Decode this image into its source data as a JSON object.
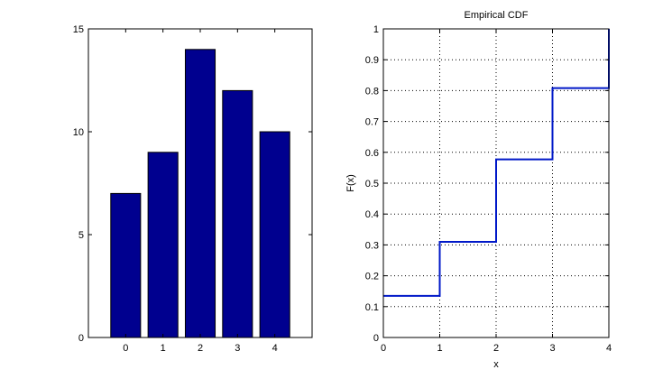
{
  "chart_data": [
    {
      "type": "bar",
      "title": "",
      "xlabel": "",
      "ylabel": "",
      "categories": [
        "0",
        "1",
        "2",
        "3",
        "4"
      ],
      "values": [
        7,
        9,
        14,
        12,
        10
      ],
      "xlim": [
        -1,
        5
      ],
      "ylim": [
        0,
        15
      ],
      "yticks": [
        0,
        5,
        10,
        15
      ],
      "grid": false,
      "bar_color": "#00008f"
    },
    {
      "type": "line",
      "step": true,
      "title": "Empirical CDF",
      "xlabel": "x",
      "ylabel": "F(x)",
      "series": [
        {
          "x": [
            0,
            1,
            1,
            2,
            2,
            3,
            3,
            4,
            4
          ],
          "y": [
            0.135,
            0.135,
            0.31,
            0.31,
            0.577,
            0.577,
            0.808,
            0.808,
            1.0
          ]
        }
      ],
      "xlim": [
        0,
        4
      ],
      "ylim": [
        0,
        1
      ],
      "xticks": [
        0,
        1,
        2,
        3,
        4
      ],
      "yticks": [
        0,
        0.1,
        0.2,
        0.3,
        0.4,
        0.5,
        0.6,
        0.7,
        0.8,
        0.9,
        1
      ],
      "ytick_labels": [
        "0",
        "0.1",
        "0.2",
        "0.3",
        "0.4",
        "0.5",
        "0.6",
        "0.7",
        "0.8",
        "0.9",
        "1"
      ],
      "grid": true,
      "line_color": "#0018c8"
    }
  ]
}
